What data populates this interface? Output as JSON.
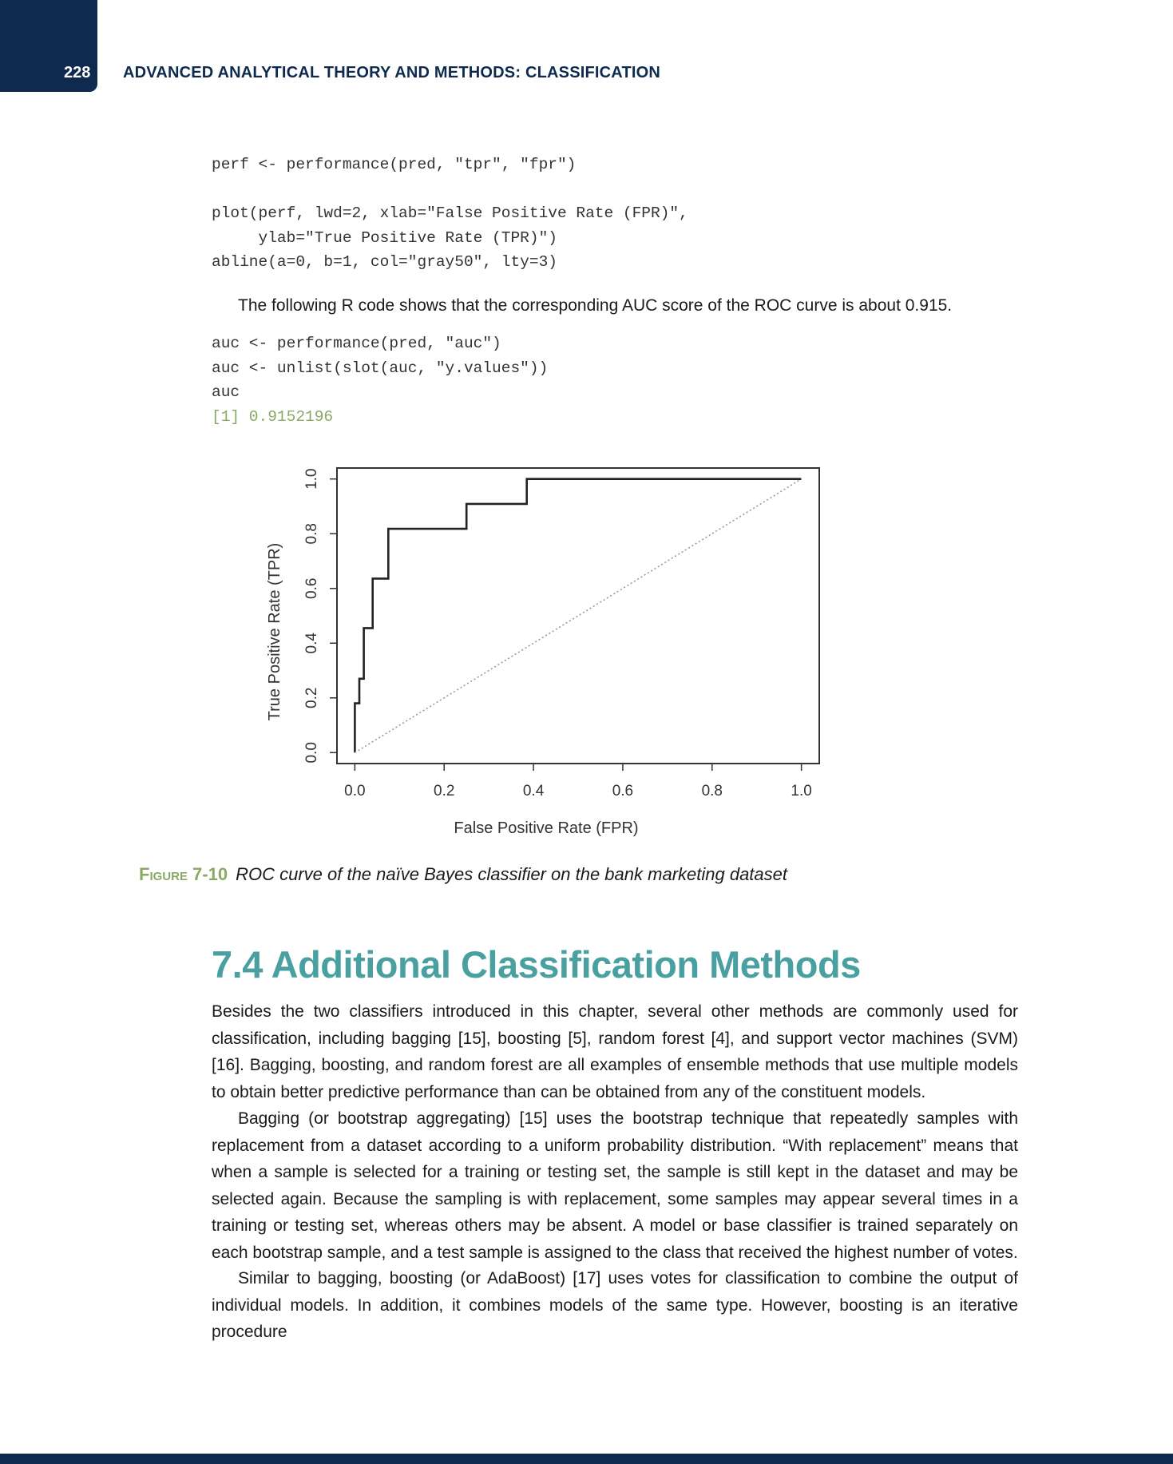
{
  "header": {
    "page_number": "228",
    "running_head": "ADVANCED ANALYTICAL THEORY AND METHODS: CLASSIFICATION"
  },
  "code_block_1": [
    "perf <- performance(pred, \"tpr\", \"fpr\")",
    "",
    "plot(perf, lwd=2, xlab=\"False Positive Rate (FPR)\",",
    "     ylab=\"True Positive Rate (TPR)\")",
    "abline(a=0, b=1, col=\"gray50\", lty=3)"
  ],
  "paragraph_auc": "The following R code shows that the corresponding AUC score of the ROC curve is about 0.915.",
  "code_block_2": [
    "auc <- performance(pred, \"auc\")",
    "auc <- unlist(slot(auc, \"y.values\"))",
    "auc"
  ],
  "code_output": "[1] 0.9152196",
  "chart_data": {
    "type": "line",
    "xlabel": "False Positive Rate (FPR)",
    "ylabel": "True Positive Rate (TPR)",
    "xlim": [
      0,
      1
    ],
    "ylim": [
      0,
      1
    ],
    "x_ticks": [
      "0.0",
      "0.2",
      "0.4",
      "0.6",
      "0.8",
      "1.0"
    ],
    "y_ticks": [
      "0.0",
      "0.2",
      "0.4",
      "0.6",
      "0.8",
      "1.0"
    ],
    "grid": false,
    "series": [
      {
        "style": "step",
        "color": "#222222",
        "x": [
          0.0,
          0.0,
          0.01,
          0.01,
          0.02,
          0.02,
          0.04,
          0.04,
          0.075,
          0.075,
          0.25,
          0.25,
          0.385,
          0.385,
          1.0
        ],
        "y": [
          0.0,
          0.18,
          0.18,
          0.27,
          0.27,
          0.455,
          0.455,
          0.636,
          0.636,
          0.818,
          0.818,
          0.909,
          0.909,
          1.0,
          1.0
        ]
      },
      {
        "style": "dotted",
        "color": "#999999",
        "x": [
          0,
          1
        ],
        "y": [
          0,
          1
        ]
      }
    ]
  },
  "figure_caption": {
    "label": "Figure 7-10",
    "text": "ROC curve of the naïve Bayes classifier on the bank marketing dataset"
  },
  "section_heading": "7.4 Additional Classification Methods",
  "paragraphs": [
    "Besides the two classifiers introduced in this chapter, several other methods are commonly used for classification, including bagging [15], boosting [5], random forest [4], and support vector machines (SVM) [16]. Bagging, boosting, and random forest are all examples of ensemble methods that use multiple models to obtain better predictive performance than can be obtained from any of the constituent models.",
    "Bagging (or bootstrap aggregating) [15] uses the bootstrap technique that repeatedly samples with replacement from a dataset according to a uniform probability distribution. “With replacement” means that when a sample is selected for a training or testing set, the sample is still kept in the dataset and may be selected again. Because the sampling is with replacement, some samples may appear several times in a training or testing set, whereas others may be absent. A model or base classifier is trained separately on each bootstrap sample, and a test sample is assigned to the class that received the highest number of votes.",
    "Similar to bagging, boosting (or AdaBoost) [17] uses votes for classification to combine the output of individual models. In addition, it combines models of the same type. However, boosting is an iterative procedure"
  ]
}
